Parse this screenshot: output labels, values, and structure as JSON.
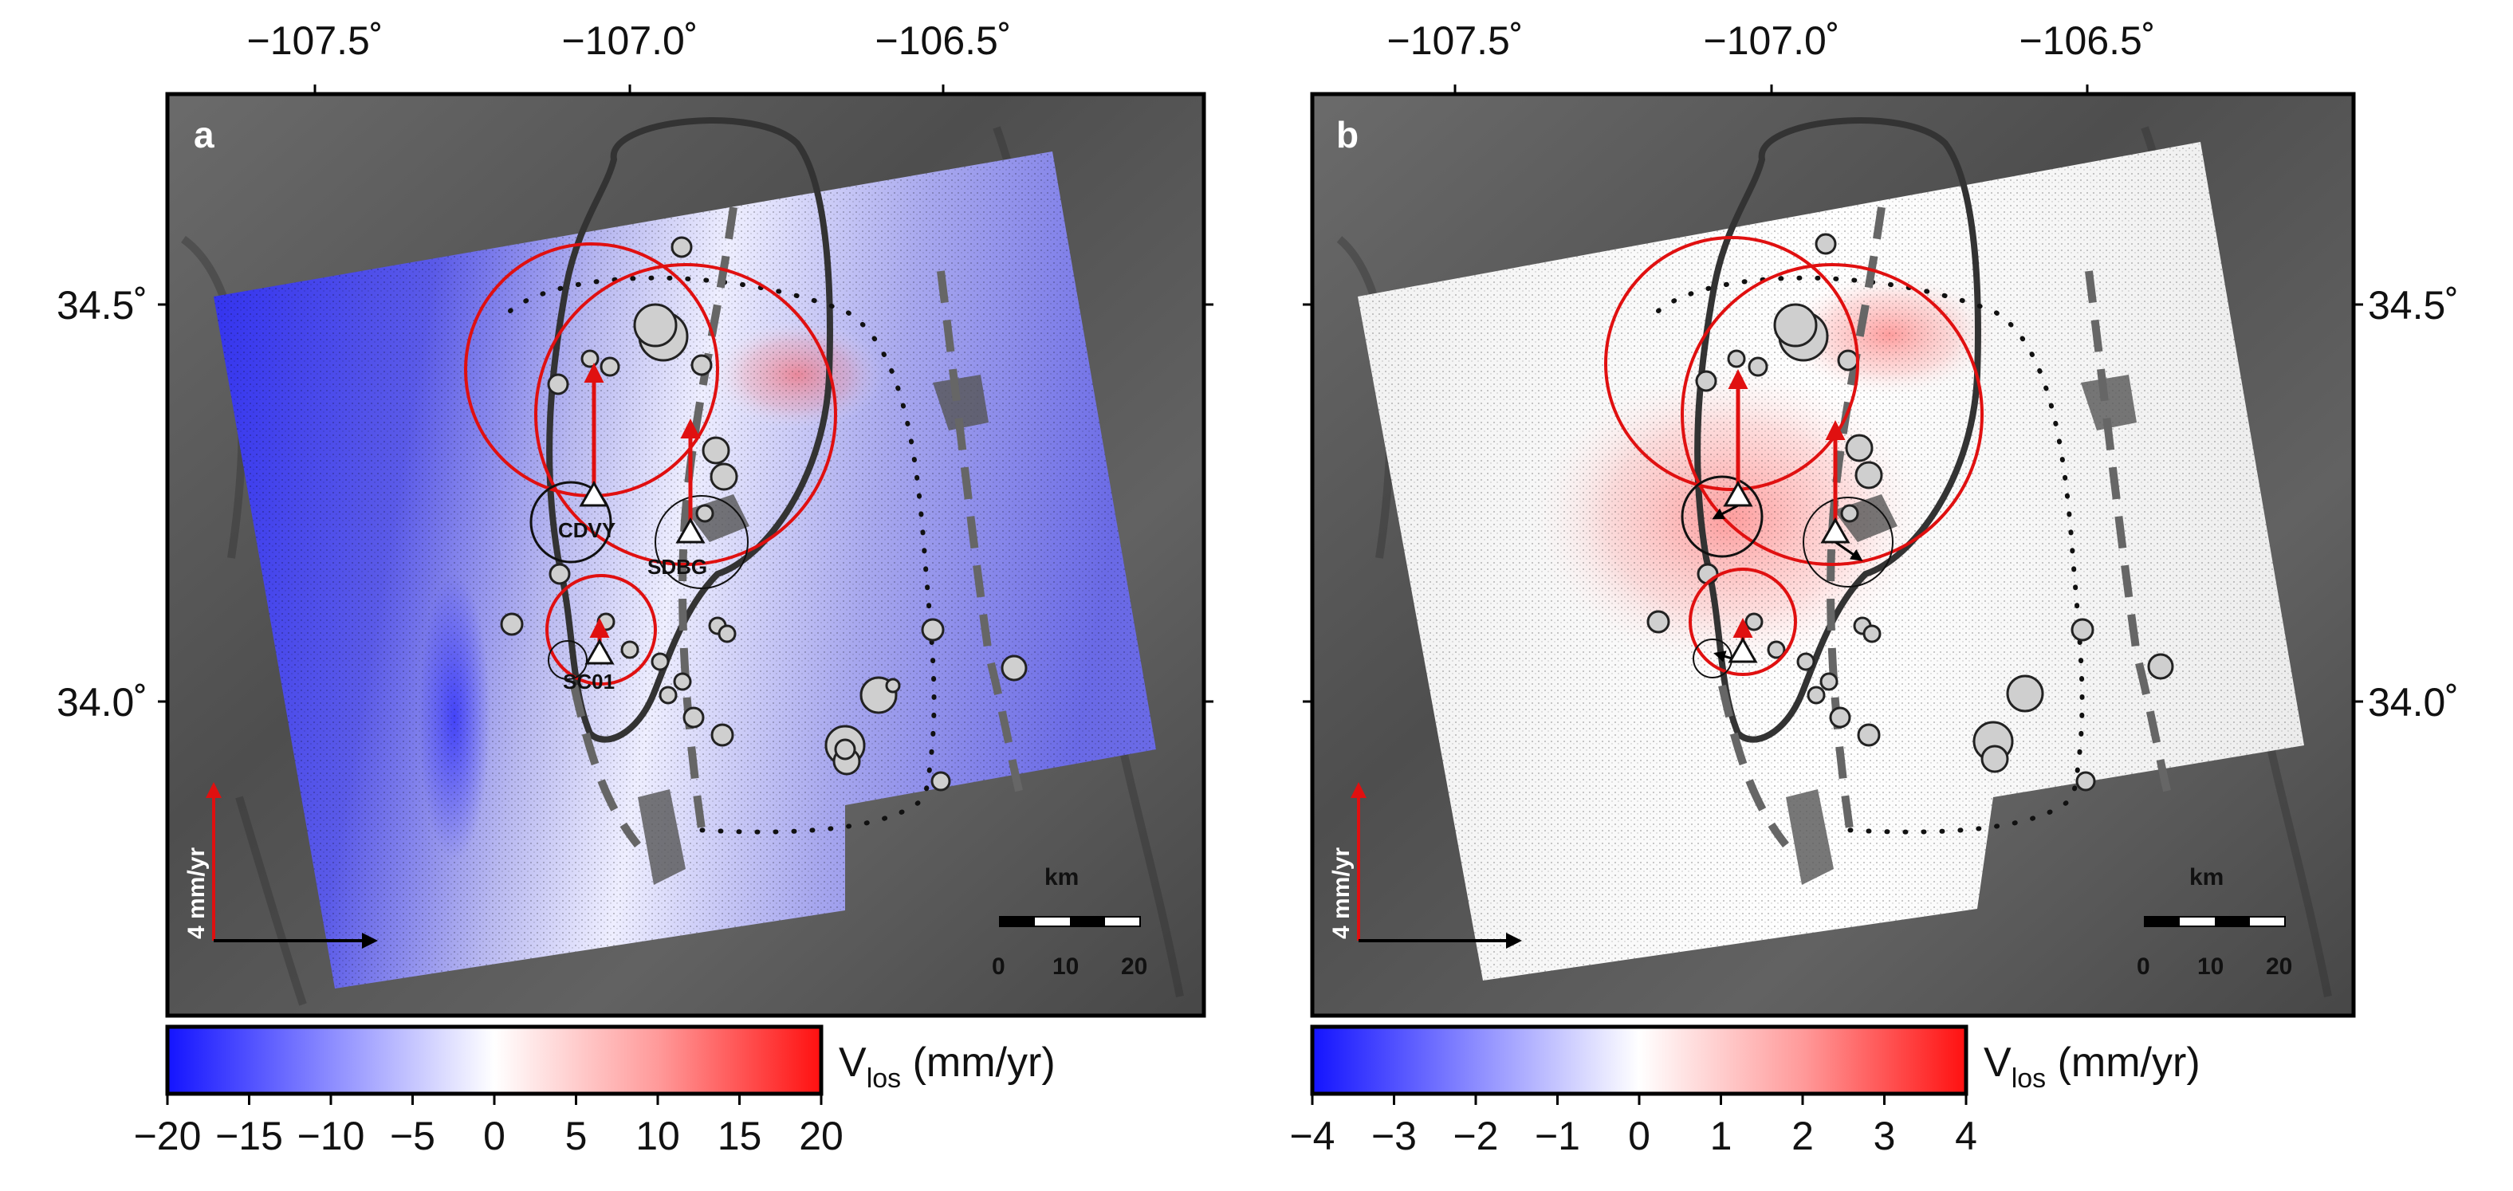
{
  "map": {
    "lon_ticks": [
      "−107.5˚",
      "−107.0˚",
      "−106.5˚"
    ],
    "lat_ticks": [
      "34.5˚",
      "34.0˚"
    ],
    "stations": [
      "CDVY",
      "SDBG",
      "SC01"
    ],
    "reference_vector": "4 mm/yr",
    "scale_bar": {
      "unit": "km",
      "labels": [
        "0",
        "10",
        "20"
      ]
    }
  },
  "panels": [
    {
      "letter": "a",
      "colorbar": {
        "label_main": "V",
        "label_sub": "los",
        "label_unit": " (mm/yr)",
        "ticks": [
          "−20",
          "−15",
          "−10",
          "−5",
          "0",
          "5",
          "10",
          "15",
          "20"
        ],
        "range": [
          -20,
          20
        ]
      }
    },
    {
      "letter": "b",
      "colorbar": {
        "label_main": "V",
        "label_sub": "los",
        "label_unit": " (mm/yr)",
        "ticks": [
          "−4",
          "−3",
          "−2",
          "−1",
          "0",
          "1",
          "2",
          "3",
          "4"
        ],
        "range": [
          -4,
          4
        ]
      }
    }
  ],
  "colors": {
    "negative": "#1a1aff",
    "zero": "#ffffff",
    "positive": "#ff1a1a",
    "vector_red": "#e01010",
    "hillshade": "#5a5a5a"
  }
}
